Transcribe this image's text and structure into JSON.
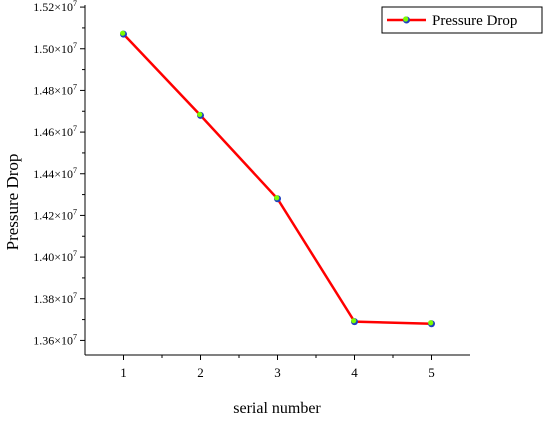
{
  "chart_data": {
    "type": "line",
    "xlabel": "serial number",
    "ylabel": "Pressure Drop",
    "x": [
      1,
      2,
      3,
      4,
      5
    ],
    "x_tick_labels": [
      "1",
      "2",
      "3",
      "4",
      "5"
    ],
    "xlim": [
      0.5,
      5.5
    ],
    "y_ticks": [
      13600000,
      13800000,
      14000000,
      14200000,
      14400000,
      14600000,
      14800000,
      15000000,
      15200000
    ],
    "y_tick_labels": [
      {
        "mantissa": "1.36",
        "base": "×10",
        "exp": "7"
      },
      {
        "mantissa": "1.38",
        "base": "×10",
        "exp": "7"
      },
      {
        "mantissa": "1.40",
        "base": "×10",
        "exp": "7"
      },
      {
        "mantissa": "1.42",
        "base": "×10",
        "exp": "7"
      },
      {
        "mantissa": "1.44",
        "base": "×10",
        "exp": "7"
      },
      {
        "mantissa": "1.46",
        "base": "×10",
        "exp": "7"
      },
      {
        "mantissa": "1.48",
        "base": "×10",
        "exp": "7"
      },
      {
        "mantissa": "1.50",
        "base": "×10",
        "exp": "7"
      },
      {
        "mantissa": "1.52",
        "base": "×10",
        "exp": "7"
      }
    ],
    "ylim": [
      13530000,
      15210000
    ],
    "grid": false,
    "legend_position": "top-right",
    "series": [
      {
        "name": "Pressure Drop",
        "values": [
          15070000,
          14680000,
          14280000,
          13690000,
          13680000
        ],
        "line_color": "#ff0000",
        "marker_fill": "#7cfc00",
        "marker_edge": "#1f3fbf"
      }
    ]
  }
}
